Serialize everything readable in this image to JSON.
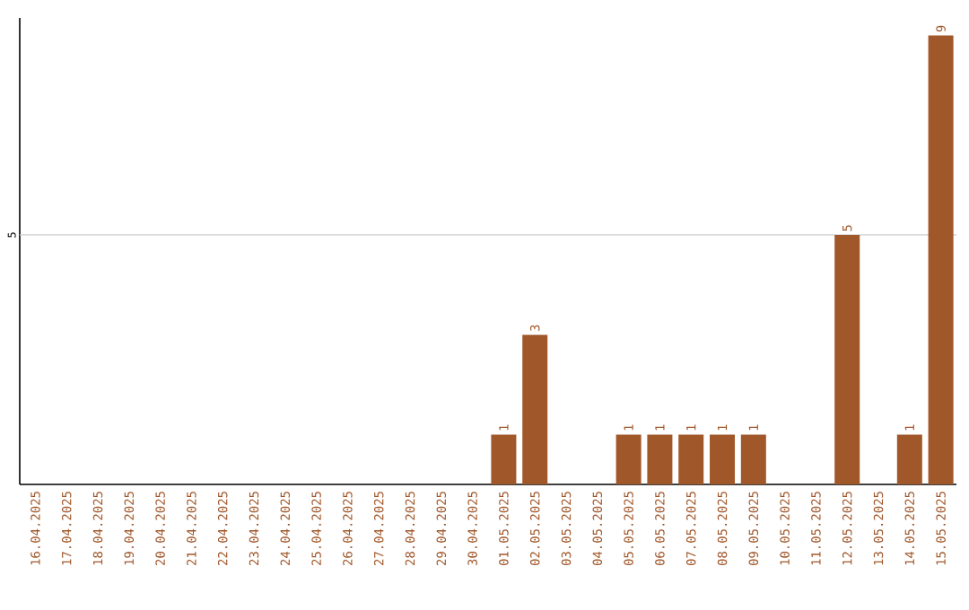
{
  "chart_data": {
    "type": "bar",
    "categories": [
      "16.04.2025",
      "17.04.2025",
      "18.04.2025",
      "19.04.2025",
      "20.04.2025",
      "21.04.2025",
      "22.04.2025",
      "23.04.2025",
      "24.04.2025",
      "25.04.2025",
      "26.04.2025",
      "27.04.2025",
      "28.04.2025",
      "29.04.2025",
      "30.04.2025",
      "01.05.2025",
      "02.05.2025",
      "03.05.2025",
      "04.05.2025",
      "05.05.2025",
      "06.05.2025",
      "07.05.2025",
      "08.05.2025",
      "09.05.2025",
      "10.05.2025",
      "11.05.2025",
      "12.05.2025",
      "13.05.2025",
      "14.05.2025",
      "15.05.2025"
    ],
    "values": [
      null,
      null,
      null,
      null,
      null,
      null,
      null,
      null,
      null,
      null,
      null,
      null,
      null,
      null,
      null,
      1,
      3,
      null,
      null,
      1,
      1,
      1,
      1,
      1,
      null,
      null,
      5,
      null,
      1,
      9
    ],
    "value_labels": [
      null,
      null,
      null,
      null,
      null,
      null,
      null,
      null,
      null,
      null,
      null,
      null,
      null,
      null,
      null,
      "1",
      "3",
      null,
      null,
      "1",
      "1",
      "1",
      "1",
      "1",
      null,
      null,
      "5",
      null,
      "1",
      "9"
    ],
    "color": "#a0572a",
    "ylim": [
      0,
      9.35
    ],
    "ref_lines": [
      {
        "axis": "y",
        "value": 5,
        "label": "5",
        "color": "#cccccc"
      }
    ]
  }
}
